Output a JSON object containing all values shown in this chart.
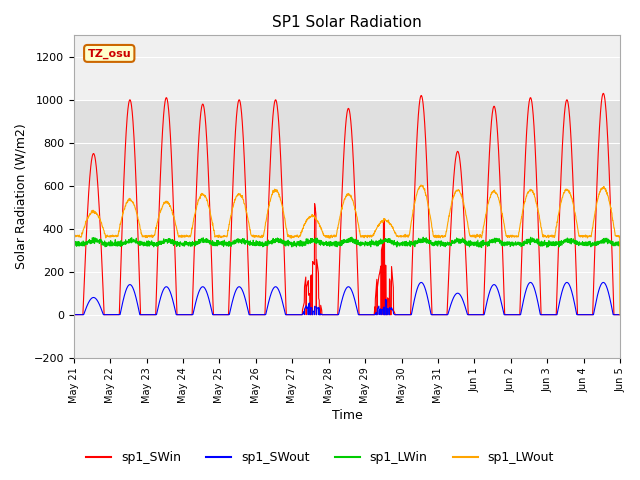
{
  "title": "SP1 Solar Radiation",
  "xlabel": "Time",
  "ylabel": "Solar Radiation (W/m2)",
  "ylim": [
    -200,
    1300
  ],
  "yticks": [
    -200,
    0,
    200,
    400,
    600,
    800,
    1000,
    1200
  ],
  "colors": {
    "sp1_SWin": "#ff0000",
    "sp1_SWout": "#0000ff",
    "sp1_LWin": "#00cc00",
    "sp1_LWout": "#ffa500"
  },
  "tz_label": "TZ_osu",
  "legend_labels": [
    "sp1_SWin",
    "sp1_SWout",
    "sp1_LWin",
    "sp1_LWout"
  ],
  "n_days": 15,
  "plot_bg_color": "#f0f0f0",
  "grid_color": "#ffffff",
  "axhspan_low": 600,
  "axhspan_high": 1000,
  "axhspan_color": "#e0e0e0",
  "x_tick_labels": [
    "May 21",
    "May 22",
    "May 23",
    "May 24",
    "May 25",
    "May 26",
    "May 27",
    "May 28",
    "May 29",
    "May 30",
    "May 31",
    "Jun 1",
    "Jun 2",
    "Jun 3",
    "Jun 4",
    "Jun 5"
  ],
  "day_peaks_SWin": [
    750,
    1000,
    1010,
    980,
    1000,
    1000,
    630,
    960,
    620,
    1020,
    760,
    970,
    1010,
    1000,
    1030
  ],
  "day_peaks_SWout": [
    80,
    140,
    130,
    130,
    130,
    130,
    80,
    130,
    80,
    150,
    100,
    140,
    150,
    150,
    150
  ],
  "day_peaks_LWout": [
    480,
    535,
    525,
    560,
    560,
    580,
    460,
    560,
    440,
    600,
    580,
    575,
    580,
    582,
    592
  ],
  "LWin_base": 330,
  "LWout_base": 365,
  "cloudy_days": [
    6,
    8
  ]
}
